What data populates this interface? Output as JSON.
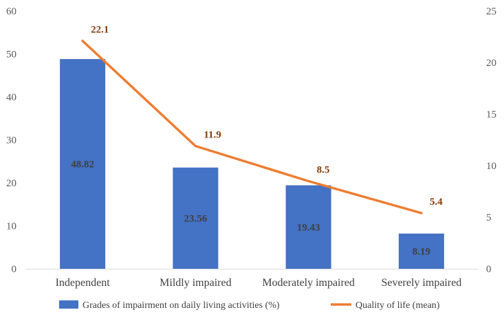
{
  "chart_data": {
    "type": "bar",
    "categories": [
      "Independent",
      "Mildly impaired",
      "Moderately impaired",
      "Severely impaired"
    ],
    "series": [
      {
        "name": "Grades of impairment on daily living activities (%)",
        "type": "bar",
        "axis": "left",
        "color": "#4472c4",
        "values": [
          48.82,
          23.56,
          19.43,
          8.19
        ],
        "labels": [
          "48.82",
          "23.56",
          "19.43",
          "8.19"
        ]
      },
      {
        "name": "Quality of life (mean)",
        "type": "line",
        "axis": "right",
        "color": "#ed7d31",
        "values": [
          22.1,
          11.9,
          8.5,
          5.4
        ],
        "labels": [
          "22.1",
          "11.9",
          "8.5",
          "5.4"
        ]
      }
    ],
    "y_left": {
      "min": 0,
      "max": 60,
      "ticks": [
        "0",
        "10",
        "20",
        "30",
        "40",
        "50",
        "60"
      ]
    },
    "y_right": {
      "min": 0,
      "max": 25,
      "ticks": [
        "0",
        "5",
        "10",
        "15",
        "20",
        "25"
      ]
    },
    "grid": false,
    "legend": "bottom"
  }
}
